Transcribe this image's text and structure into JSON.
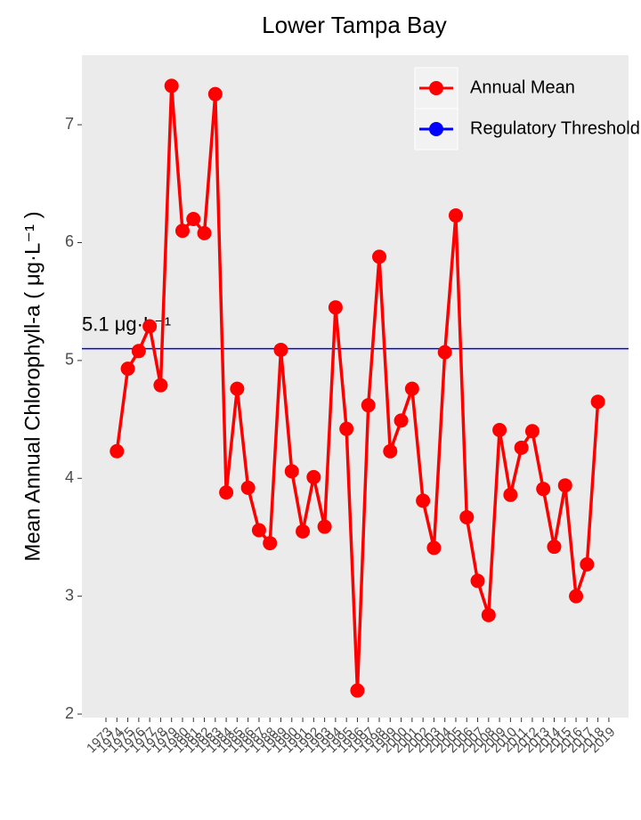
{
  "chart_data": {
    "type": "line",
    "title": "Lower Tampa Bay",
    "y_label": "Mean Annual Chlorophyll-a ( μg·L⁻¹ )",
    "x": [
      1974,
      1975,
      1976,
      1977,
      1978,
      1979,
      1980,
      1981,
      1982,
      1983,
      1984,
      1985,
      1986,
      1987,
      1988,
      1989,
      1990,
      1991,
      1992,
      1993,
      1994,
      1995,
      1996,
      1997,
      1998,
      1999,
      2000,
      2001,
      2002,
      2003,
      2004,
      2005,
      2006,
      2007,
      2008,
      2009,
      2010,
      2011,
      2012,
      2013,
      2014,
      2015,
      2016,
      2017,
      2018
    ],
    "series": [
      {
        "name": "Annual Mean",
        "color": "#ff0000",
        "values": [
          4.23,
          4.93,
          5.08,
          5.29,
          4.79,
          7.33,
          6.1,
          6.2,
          6.08,
          7.26,
          3.88,
          4.76,
          3.92,
          3.56,
          3.45,
          5.09,
          4.06,
          3.55,
          4.01,
          3.59,
          5.45,
          4.42,
          2.2,
          4.62,
          5.88,
          4.23,
          4.49,
          4.76,
          3.81,
          3.41,
          5.07,
          6.23,
          3.67,
          3.13,
          2.84,
          4.41,
          3.86,
          4.26,
          4.4,
          3.91,
          3.42,
          3.94,
          3.0,
          3.27,
          4.65
        ]
      }
    ],
    "threshold": {
      "name": "Regulatory Threshold",
      "color": "#0000ff",
      "value": 5.1,
      "label": "5.1 μg·L⁻¹"
    },
    "xlim": [
      1970.8,
      2020.8
    ],
    "xticks": [
      1973,
      1974,
      1975,
      1976,
      1977,
      1978,
      1979,
      1980,
      1981,
      1982,
      1983,
      1984,
      1985,
      1986,
      1987,
      1988,
      1989,
      1990,
      1991,
      1992,
      1993,
      1994,
      1995,
      1996,
      1997,
      1998,
      1999,
      2000,
      2001,
      2002,
      2003,
      2004,
      2005,
      2006,
      2007,
      2008,
      2009,
      2010,
      2011,
      2012,
      2013,
      2014,
      2015,
      2016,
      2017,
      2018,
      2019
    ],
    "ylim": [
      1.97,
      7.59
    ],
    "yticks": [
      2,
      3,
      4,
      5,
      6,
      7
    ],
    "grid": false,
    "legend": "top-right"
  }
}
